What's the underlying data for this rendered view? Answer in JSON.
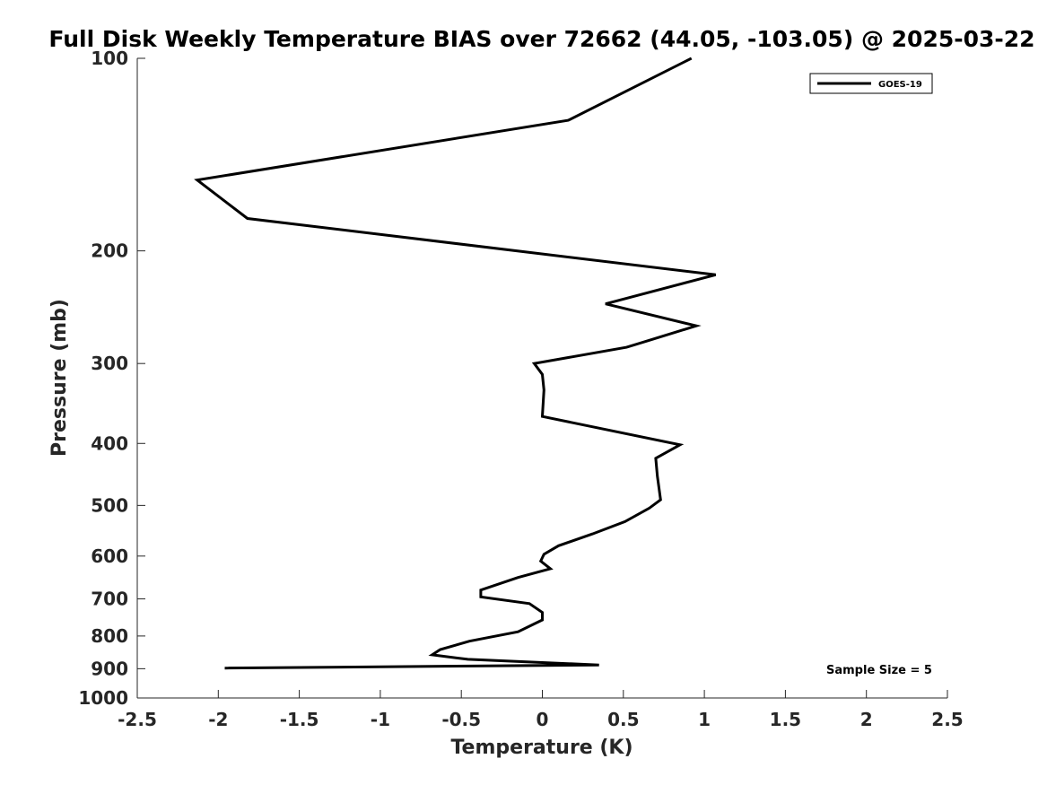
{
  "chart_data": {
    "type": "line",
    "title": "Full Disk Weekly Temperature BIAS over 72662 (44.05, -103.05) @ 2025-03-22",
    "xlabel": "Temperature (K)",
    "ylabel": "Pressure (mb)",
    "xlim": [
      -2.5,
      2.5
    ],
    "ylim": [
      100,
      1000
    ],
    "yscale": "log",
    "y_reversed": true,
    "grid": false,
    "legend_position": "top-right",
    "xticks": [
      -2.5,
      -2,
      -1.5,
      -1,
      -0.5,
      0,
      0.5,
      1,
      1.5,
      2,
      2.5
    ],
    "xtick_labels": [
      "-2.5",
      "-2",
      "-1.5",
      "-1",
      "-0.5",
      "0",
      "0.5",
      "1",
      "1.5",
      "2",
      "2.5"
    ],
    "yticks": [
      100,
      200,
      300,
      400,
      500,
      600,
      700,
      800,
      900,
      1000
    ],
    "ytick_labels": [
      "100",
      "200",
      "300",
      "400",
      "500",
      "600",
      "700",
      "800",
      "900",
      "1000"
    ],
    "series": [
      {
        "name": "GOES-19",
        "color": "#000000",
        "points": [
          [
            0.92,
            100
          ],
          [
            0.16,
            125
          ],
          [
            -2.13,
            155
          ],
          [
            -1.82,
            178
          ],
          [
            1.07,
            218
          ],
          [
            0.39,
            242
          ],
          [
            0.95,
            262
          ],
          [
            0.52,
            283
          ],
          [
            -0.05,
            300
          ],
          [
            0.0,
            312
          ],
          [
            0.01,
            330
          ],
          [
            0.0,
            363
          ],
          [
            0.85,
            402
          ],
          [
            0.7,
            422
          ],
          [
            0.71,
            450
          ],
          [
            0.73,
            490
          ],
          [
            0.66,
            505
          ],
          [
            0.51,
            530
          ],
          [
            0.31,
            554
          ],
          [
            0.1,
            578
          ],
          [
            0.01,
            596
          ],
          [
            -0.01,
            611
          ],
          [
            0.05,
            628
          ],
          [
            -0.15,
            648
          ],
          [
            -0.38,
            678
          ],
          [
            -0.38,
            695
          ],
          [
            -0.08,
            712
          ],
          [
            0.0,
            735
          ],
          [
            0.0,
            755
          ],
          [
            -0.15,
            788
          ],
          [
            -0.45,
            815
          ],
          [
            -0.63,
            840
          ],
          [
            -0.68,
            856
          ],
          [
            -0.46,
            870
          ],
          [
            0.35,
            888
          ],
          [
            -1.96,
            898
          ]
        ]
      }
    ],
    "annotations": [
      "Sample Size = 5"
    ]
  },
  "legend": {
    "label": "GOES-19"
  },
  "annotation": {
    "sample_size": "Sample Size = 5"
  }
}
